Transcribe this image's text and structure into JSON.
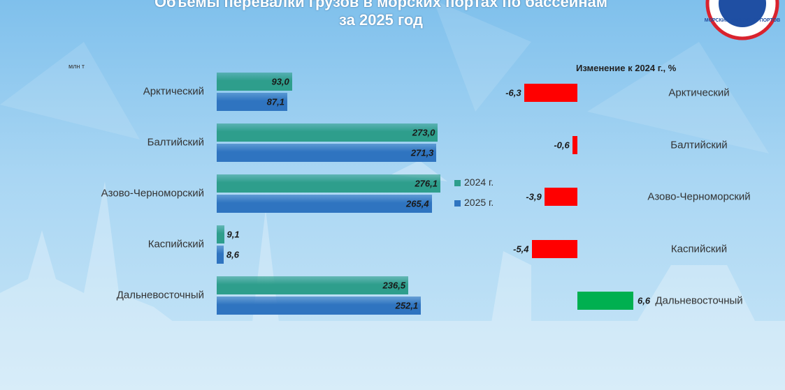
{
  "chart_data": [
    {
      "type": "hbar",
      "title": "Объемы перевалки грузов в морских портах по бассейнам",
      "subtitle": "за 2025 год",
      "unit": "млн т",
      "categories": [
        "Арктический",
        "Балтийский",
        "Азово-Черноморский",
        "Каспийский",
        "Дальневосточный"
      ],
      "series": [
        {
          "name": "2024 г.",
          "color": "#2e9e8c",
          "values": [
            93.0,
            273.0,
            276.1,
            9.1,
            236.5
          ],
          "value_labels": [
            "93,0",
            "273,0",
            "276,1",
            "9,1",
            "236,5"
          ]
        },
        {
          "name": "2025 г.",
          "color": "#2f74c0",
          "values": [
            87.1,
            271.3,
            265.4,
            8.6,
            252.1
          ],
          "value_labels": [
            "87,1",
            "271,3",
            "265,4",
            "8,6",
            "252,1"
          ]
        }
      ]
    },
    {
      "type": "diverging",
      "title": "Изменение к 2024 г., %",
      "categories": [
        "Арктический",
        "Балтийский",
        "Азово-Черноморский",
        "Каспийский",
        "Дальневосточный"
      ],
      "values": [
        -6.3,
        -0.6,
        -3.9,
        -5.4,
        6.6
      ],
      "value_labels": [
        "-6,3",
        "-0,6",
        "-3,9",
        "-5,4",
        "6,6"
      ],
      "colors": [
        "#ff0000",
        "#ff0000",
        "#ff0000",
        "#ff0000",
        "#00b050"
      ]
    }
  ],
  "logo": {
    "text": "МОРСКИХ ТОРГОВЫХ ПОРТОВ"
  }
}
